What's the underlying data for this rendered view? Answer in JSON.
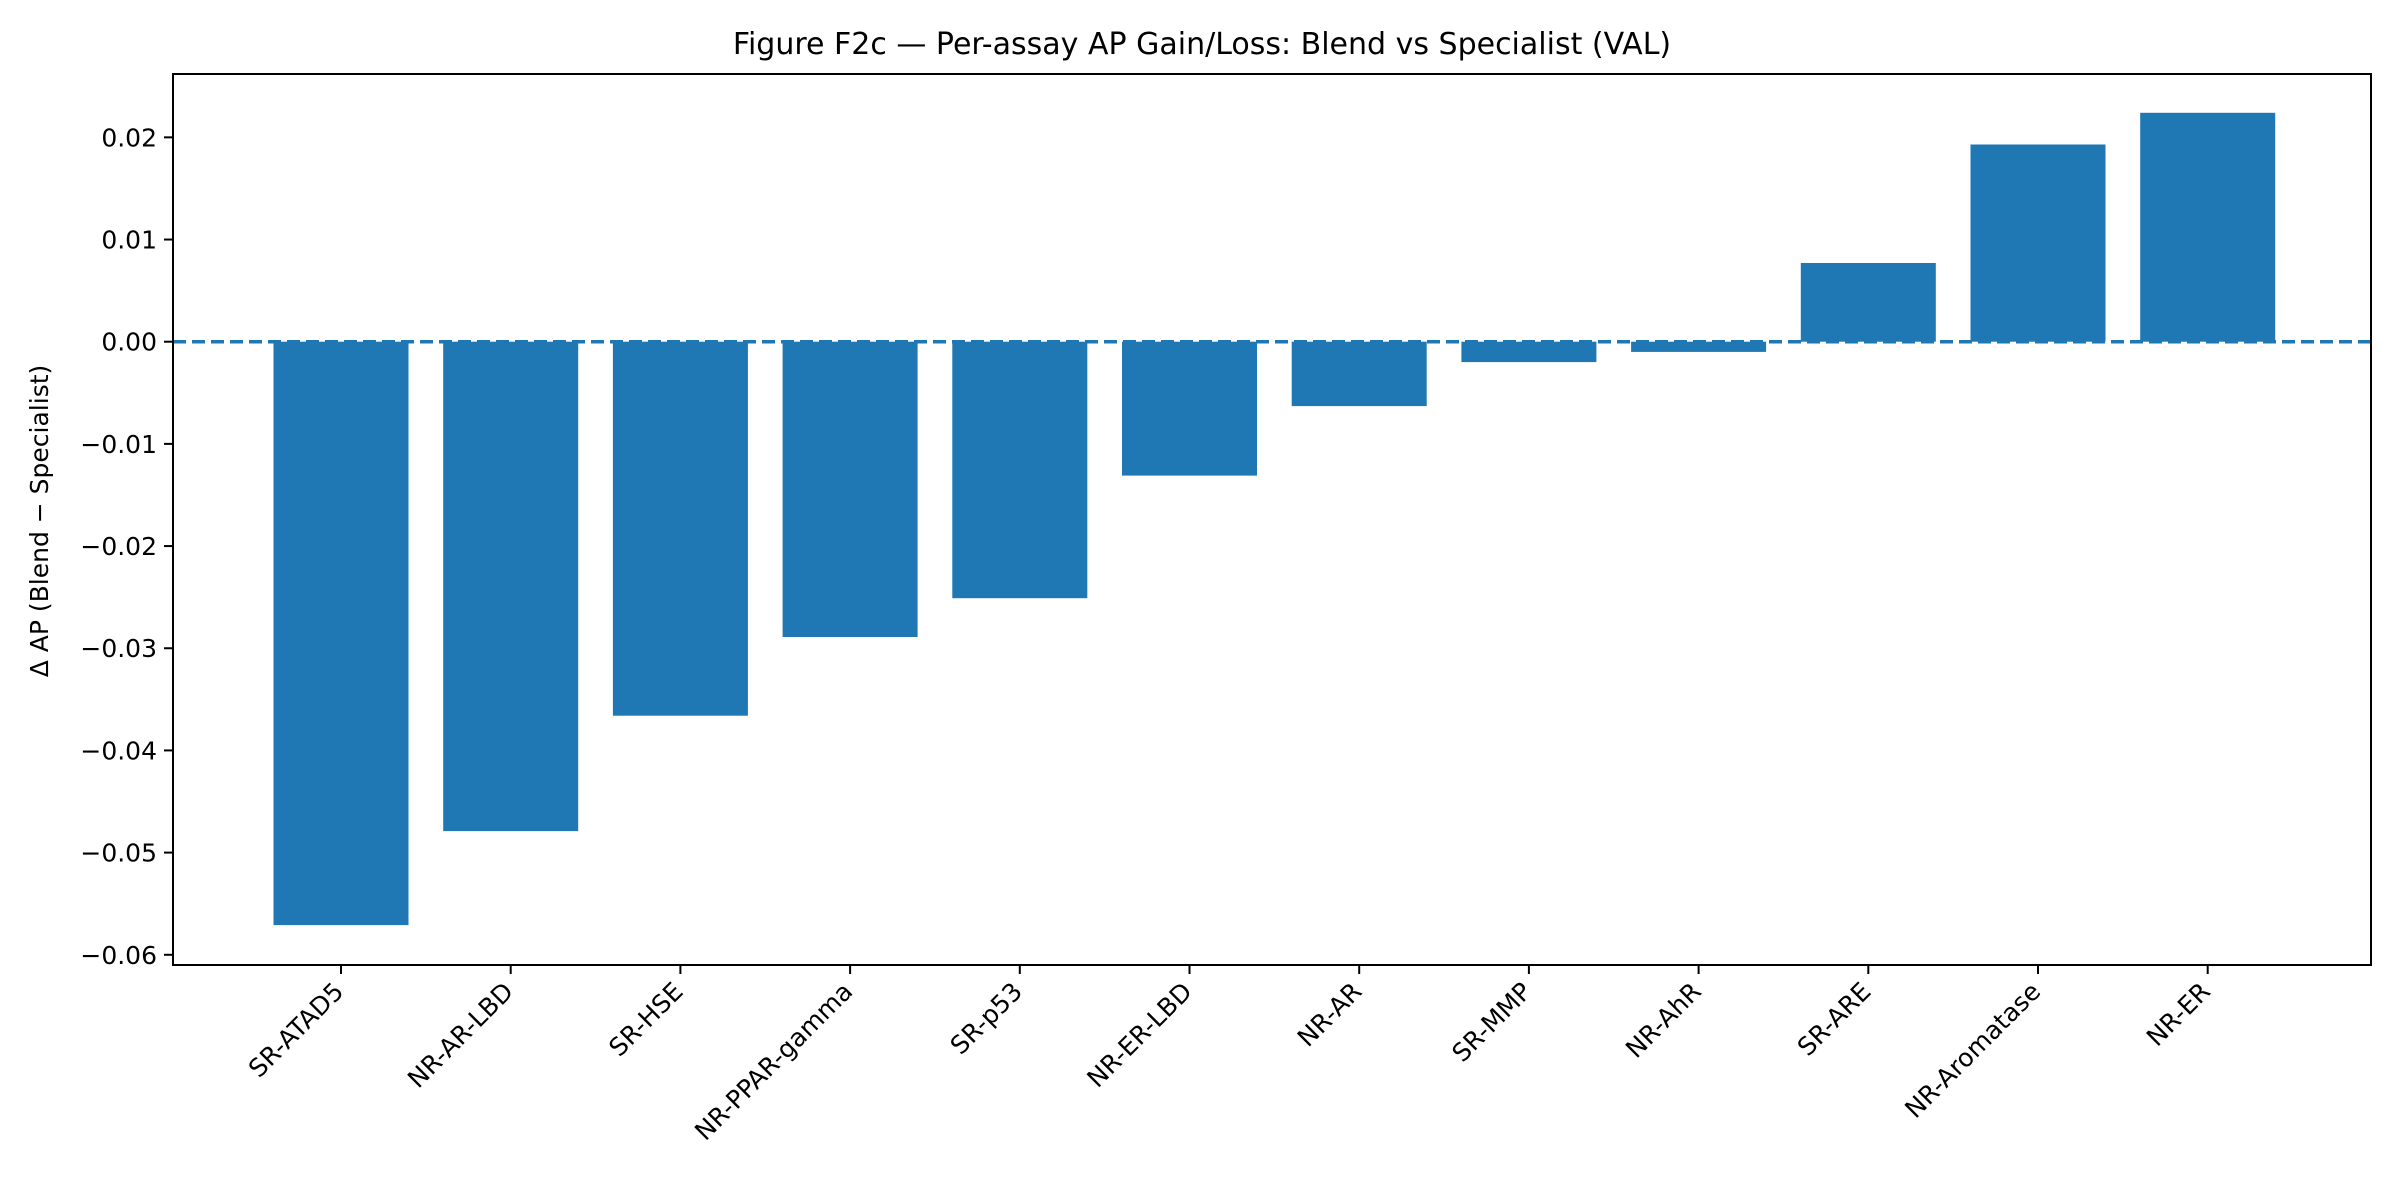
{
  "chart_data": {
    "type": "bar",
    "title": "Figure F2c — Per-assay AP Gain/Loss: Blend vs Specialist (VAL)",
    "xlabel": "",
    "ylabel": "Δ AP (Blend − Specialist)",
    "categories": [
      "SR-ATAD5",
      "NR-AR-LBD",
      "SR-HSE",
      "NR-PPAR-gamma",
      "SR-p53",
      "NR-ER-LBD",
      "NR-AR",
      "SR-MMP",
      "NR-AhR",
      "SR-ARE",
      "NR-Aromatase",
      "NR-ER"
    ],
    "values": [
      -0.0571,
      -0.0479,
      -0.0366,
      -0.0289,
      -0.0251,
      -0.0131,
      -0.0063,
      -0.002,
      -0.001,
      0.0077,
      0.0193,
      0.0224
    ],
    "ylim": [
      -0.061,
      0.0262
    ],
    "yticks": [
      0.02,
      0.01,
      0.0,
      -0.01,
      -0.02,
      -0.03,
      -0.04,
      -0.05,
      -0.06
    ],
    "ytick_labels": [
      "0.02",
      "0.01",
      "0.00",
      "−0.01",
      "−0.02",
      "−0.03",
      "−0.04",
      "−0.05",
      "−0.06"
    ],
    "reference_line": 0,
    "grid": false,
    "bar_color": "#1f77b4"
  }
}
